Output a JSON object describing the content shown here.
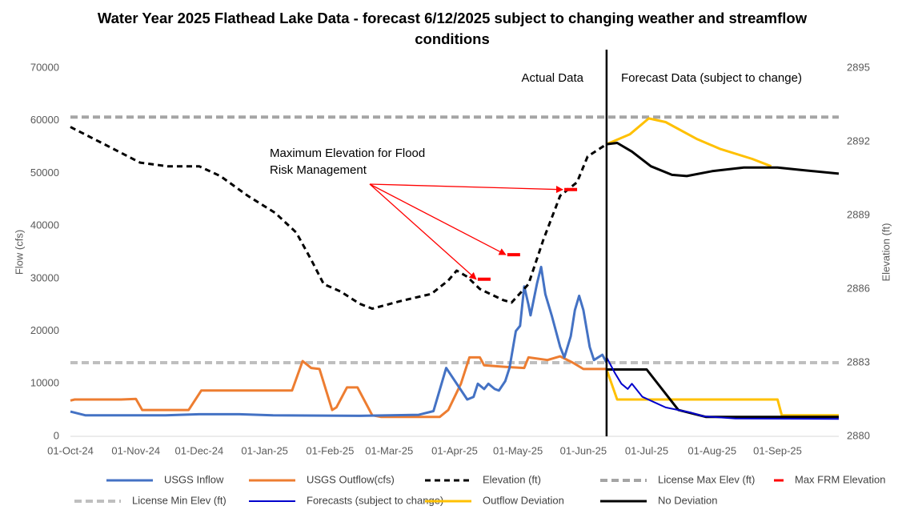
{
  "chart_data": {
    "type": "line",
    "title": "Water Year 2025 Flathead Lake Data - forecast 6/12/2025 subject to changing weather and streamflow conditions",
    "ylabel": "Flow (cfs)",
    "y2label": "Elevation (ft)",
    "ylim": [
      0,
      70000
    ],
    "yticks": [
      0,
      10000,
      20000,
      30000,
      40000,
      50000,
      60000,
      70000
    ],
    "y2lim": [
      2880,
      2895
    ],
    "y2ticks": [
      2880,
      2883,
      2886,
      2889,
      2892,
      2895
    ],
    "xlim": [
      "2024-10-01",
      "2025-09-30"
    ],
    "xticks": [
      {
        "value": "2024-10-01",
        "label": "01-Oct-24"
      },
      {
        "value": "2024-11-01",
        "label": "01-Nov-24"
      },
      {
        "value": "2024-12-01",
        "label": "01-Dec-24"
      },
      {
        "value": "2025-01-01",
        "label": "01-Jan-25"
      },
      {
        "value": "2025-02-01",
        "label": "01-Feb-25"
      },
      {
        "value": "2025-03-01",
        "label": "01-Mar-25"
      },
      {
        "value": "2025-04-01",
        "label": "01-Apr-25"
      },
      {
        "value": "2025-05-01",
        "label": "01-May-25"
      },
      {
        "value": "2025-06-01",
        "label": "01-Jun-25"
      },
      {
        "value": "2025-07-01",
        "label": "01-Jul-25"
      },
      {
        "value": "2025-08-01",
        "label": "01-Aug-25"
      },
      {
        "value": "2025-09-01",
        "label": "01-Sep-25"
      }
    ],
    "annotations": {
      "actual": "Actual Data",
      "forecast": "Forecast Data (subject to change)",
      "frm": "Maximum Elevation for Flood Risk Management"
    },
    "series": [
      {
        "name": "USGS Inflow",
        "color": "#4472c4",
        "style": "solid",
        "x": [
          "2024-10-01",
          "2024-10-08",
          "2024-11-15",
          "2024-12-01",
          "2024-12-20",
          "2025-01-05",
          "2025-02-15",
          "2025-03-01",
          "2025-03-15",
          "2025-03-22",
          "2025-03-28",
          "2025-04-07",
          "2025-04-10",
          "2025-04-12",
          "2025-04-15",
          "2025-04-17",
          "2025-04-20",
          "2025-04-22",
          "2025-04-25",
          "2025-04-27",
          "2025-04-30",
          "2025-05-02",
          "2025-05-04",
          "2025-05-06",
          "2025-05-07",
          "2025-05-10",
          "2025-05-12",
          "2025-05-14",
          "2025-05-17",
          "2025-05-21",
          "2025-05-23",
          "2025-05-26",
          "2025-05-28",
          "2025-05-30",
          "2025-06-01",
          "2025-06-04",
          "2025-06-06",
          "2025-06-10",
          "2025-06-12"
        ],
        "values": [
          4700,
          4000,
          4000,
          4200,
          4200,
          4000,
          3900,
          4000,
          4100,
          4800,
          13000,
          7000,
          7500,
          10000,
          9000,
          10000,
          9000,
          8700,
          10500,
          13000,
          20000,
          21000,
          28500,
          25000,
          23000,
          29000,
          32200,
          27000,
          23000,
          17000,
          15000,
          19000,
          24000,
          26700,
          24000,
          17000,
          14500,
          15500,
          14000
        ]
      },
      {
        "name": "USGS Outflow(cfs)",
        "color": "#ed7d31",
        "style": "solid",
        "x": [
          "2024-10-01",
          "2024-10-03",
          "2024-10-25",
          "2024-11-01",
          "2024-11-04",
          "2024-11-26",
          "2024-12-02",
          "2025-01-14",
          "2025-01-19",
          "2025-01-23",
          "2025-01-27",
          "2025-02-02",
          "2025-02-04",
          "2025-02-09",
          "2025-02-14",
          "2025-02-21",
          "2025-02-25",
          "2025-03-25",
          "2025-03-29",
          "2025-04-04",
          "2025-04-08",
          "2025-04-13",
          "2025-04-15",
          "2025-04-25",
          "2025-05-04",
          "2025-05-06",
          "2025-05-15",
          "2025-05-21",
          "2025-05-27",
          "2025-06-01",
          "2025-06-12"
        ],
        "values": [
          6800,
          7000,
          7000,
          7100,
          5000,
          5000,
          8700,
          8700,
          14300,
          13000,
          12800,
          5000,
          5500,
          9300,
          9300,
          4000,
          3700,
          3700,
          5000,
          10000,
          15000,
          15000,
          13500,
          13200,
          13000,
          15000,
          14500,
          15200,
          14000,
          12800,
          12800
        ]
      },
      {
        "name": "Elevation (ft)",
        "color": "#000000",
        "style": "dashed",
        "axis": "y2",
        "x": [
          "2024-10-01",
          "2024-10-17",
          "2024-11-03",
          "2024-11-16",
          "2024-12-01",
          "2024-12-11",
          "2024-12-24",
          "2025-01-06",
          "2025-01-16",
          "2025-01-23",
          "2025-01-29",
          "2025-02-06",
          "2025-02-15",
          "2025-02-21",
          "2025-03-06",
          "2025-03-21",
          "2025-03-29",
          "2025-04-02",
          "2025-04-07",
          "2025-04-13",
          "2025-04-24",
          "2025-04-28",
          "2025-05-06",
          "2025-05-13",
          "2025-05-21",
          "2025-05-29",
          "2025-06-03",
          "2025-06-12"
        ],
        "values": [
          2892.6,
          2891.9,
          2891.15,
          2891.0,
          2891.0,
          2890.6,
          2889.8,
          2889.1,
          2888.3,
          2887.2,
          2886.2,
          2885.9,
          2885.4,
          2885.2,
          2885.5,
          2885.8,
          2886.35,
          2886.75,
          2886.5,
          2886.0,
          2885.55,
          2885.45,
          2886.2,
          2888.0,
          2889.8,
          2890.35,
          2891.4,
          2891.9
        ]
      },
      {
        "name": "License Max Elev (ft)",
        "color": "#a5a5a5",
        "style": "dashed",
        "axis": "y2",
        "x": [
          "2024-10-01",
          "2025-09-30"
        ],
        "values": [
          2893,
          2893
        ]
      },
      {
        "name": "Max FRM Elevation",
        "color": "#ff0000",
        "style": "marker",
        "axis": "y2",
        "x": [
          "2025-04-15",
          "2025-04-29",
          "2025-05-26"
        ],
        "values": [
          2886.4,
          2887.4,
          2890.05
        ]
      },
      {
        "name": "License Min Elev (ft)",
        "color": "#bfbfbf",
        "style": "dashed",
        "axis": "y2",
        "x": [
          "2024-10-01",
          "2025-09-30"
        ],
        "values": [
          2883,
          2883
        ]
      },
      {
        "name": "Forecasts (subject to change)",
        "color": "#0000cc",
        "style": "thin",
        "x": [
          "2025-06-12",
          "2025-06-16",
          "2025-06-19",
          "2025-06-22",
          "2025-06-24",
          "2025-06-29",
          "2025-07-10",
          "2025-07-22",
          "2025-07-28",
          "2025-08-12",
          "2025-09-30"
        ],
        "values": [
          15000,
          12000,
          10000,
          9000,
          10000,
          7500,
          5500,
          4500,
          3800,
          3400,
          3300
        ]
      },
      {
        "name": "Outflow Deviation",
        "color": "#ffc000",
        "style": "solid",
        "x": [
          "2025-06-12",
          "2025-06-17",
          "2025-09-01",
          "2025-09-03",
          "2025-09-30"
        ],
        "values": [
          12700,
          7000,
          7000,
          4000,
          4000
        ],
        "y2_x": [
          "2025-06-12",
          "2025-06-23",
          "2025-07-02",
          "2025-07-10",
          "2025-07-25",
          "2025-08-05",
          "2025-08-20",
          "2025-08-29"
        ],
        "y2_values": [
          2891.9,
          2892.3,
          2892.95,
          2892.8,
          2892.1,
          2891.7,
          2891.3,
          2891.0
        ]
      },
      {
        "name": "No Deviation",
        "color": "#000000",
        "style": "solid",
        "x": [
          "2025-06-12",
          "2025-07-01",
          "2025-07-16",
          "2025-07-29",
          "2025-09-30"
        ],
        "values": [
          12700,
          12700,
          5000,
          3700,
          3700
        ],
        "y2_x": [
          "2025-06-12",
          "2025-06-17",
          "2025-06-24",
          "2025-07-03",
          "2025-07-13",
          "2025-07-20",
          "2025-08-01",
          "2025-08-16",
          "2025-09-01",
          "2025-09-12",
          "2025-09-30"
        ],
        "y2_values": [
          2891.9,
          2891.95,
          2891.6,
          2891.0,
          2890.65,
          2890.6,
          2890.8,
          2890.95,
          2890.95,
          2890.85,
          2890.7
        ]
      }
    ]
  }
}
